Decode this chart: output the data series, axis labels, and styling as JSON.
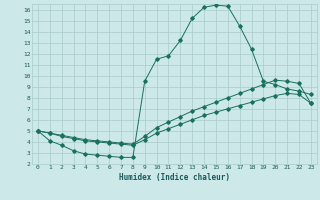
{
  "xlabel": "Humidex (Indice chaleur)",
  "bg_color": "#cce8e8",
  "grid_color": "#aacccc",
  "line_color": "#1a7060",
  "xlim": [
    -0.5,
    23.5
  ],
  "ylim": [
    2,
    16.5
  ],
  "xticks": [
    0,
    1,
    2,
    3,
    4,
    5,
    6,
    7,
    8,
    9,
    10,
    11,
    12,
    13,
    14,
    15,
    16,
    17,
    18,
    19,
    20,
    21,
    22,
    23
  ],
  "yticks": [
    2,
    3,
    4,
    5,
    6,
    7,
    8,
    9,
    10,
    11,
    12,
    13,
    14,
    15,
    16
  ],
  "line1_x": [
    0,
    1,
    2,
    3,
    4,
    5,
    6,
    7,
    8,
    9,
    10,
    11,
    12,
    13,
    14,
    15,
    16,
    17,
    18,
    19,
    20,
    21,
    22,
    23
  ],
  "line1_y": [
    5.0,
    4.1,
    3.7,
    3.2,
    2.9,
    2.8,
    2.7,
    2.6,
    2.6,
    9.5,
    11.5,
    11.8,
    13.2,
    15.2,
    16.2,
    16.4,
    16.3,
    14.5,
    12.4,
    9.5,
    9.2,
    8.8,
    8.6,
    8.3
  ],
  "line2_x": [
    0,
    1,
    2,
    3,
    4,
    5,
    6,
    7,
    8,
    9,
    10,
    11,
    12,
    13,
    14,
    15,
    16,
    17,
    18,
    19,
    20,
    21,
    22,
    23
  ],
  "line2_y": [
    5.0,
    4.8,
    4.6,
    4.4,
    4.2,
    4.1,
    4.0,
    3.9,
    3.8,
    4.5,
    5.3,
    5.8,
    6.3,
    6.8,
    7.2,
    7.6,
    8.0,
    8.4,
    8.8,
    9.2,
    9.6,
    9.5,
    9.3,
    7.5
  ],
  "line3_x": [
    0,
    1,
    2,
    3,
    4,
    5,
    6,
    7,
    8,
    9,
    10,
    11,
    12,
    13,
    14,
    15,
    16,
    17,
    18,
    19,
    20,
    21,
    22,
    23
  ],
  "line3_y": [
    5.0,
    4.8,
    4.5,
    4.3,
    4.1,
    4.0,
    3.9,
    3.8,
    3.7,
    4.2,
    4.8,
    5.2,
    5.6,
    6.0,
    6.4,
    6.7,
    7.0,
    7.3,
    7.6,
    7.9,
    8.2,
    8.4,
    8.3,
    7.5
  ]
}
